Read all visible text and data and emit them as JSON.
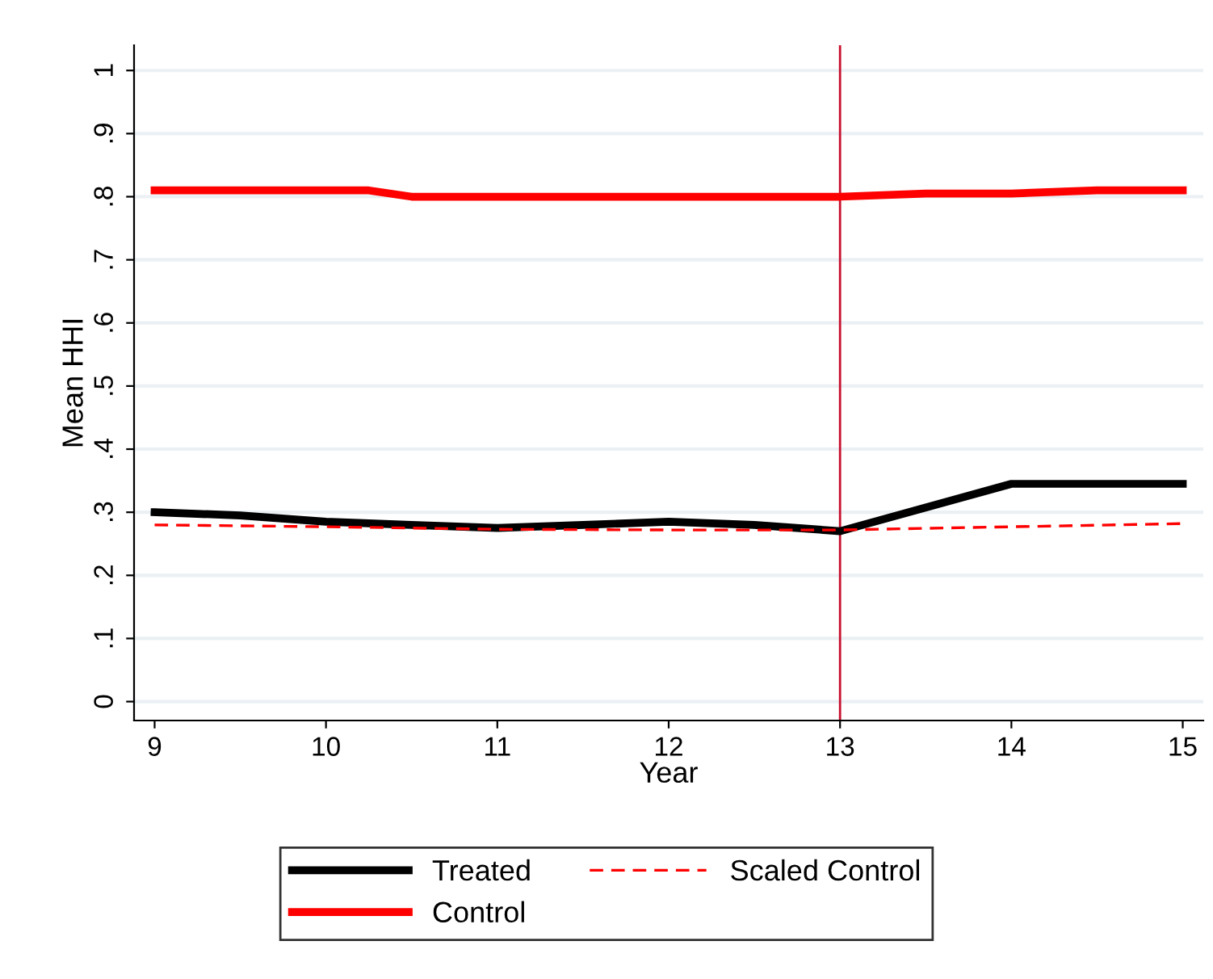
{
  "chart_data": {
    "type": "line",
    "xlabel": "Year",
    "ylabel": "Mean HHI",
    "series": [
      {
        "name": "Treated",
        "color": "#000000",
        "line_style": "solid",
        "x": [
          9,
          9.5,
          10,
          10.5,
          11,
          11.5,
          12,
          12.5,
          13,
          14,
          15
        ],
        "values": [
          0.3,
          0.295,
          0.285,
          0.28,
          0.275,
          0.28,
          0.285,
          0.28,
          0.27,
          0.345,
          0.345
        ]
      },
      {
        "name": "Control",
        "color": "#ff0000",
        "line_style": "solid",
        "x": [
          9,
          10.25,
          10.5,
          13,
          13.5,
          14,
          14.5,
          15
        ],
        "values": [
          0.81,
          0.81,
          0.8,
          0.8,
          0.805,
          0.805,
          0.81,
          0.81
        ]
      },
      {
        "name": "Scaled Control",
        "color": "#ff0000",
        "line_style": "dashed",
        "x": [
          9,
          10,
          11,
          12,
          13,
          14,
          15
        ],
        "values": [
          0.28,
          0.277,
          0.273,
          0.272,
          0.272,
          0.277,
          0.282
        ]
      }
    ],
    "xlim": [
      8.88,
      15.12
    ],
    "xticks": [
      9,
      10,
      11,
      12,
      13,
      14,
      15
    ],
    "ylim": [
      -0.03,
      1.04
    ],
    "yticks": [
      {
        "value": 0,
        "label": "0"
      },
      {
        "value": 0.1,
        "label": ".1"
      },
      {
        "value": 0.2,
        "label": ".2"
      },
      {
        "value": 0.3,
        "label": ".3"
      },
      {
        "value": 0.4,
        "label": ".4"
      },
      {
        "value": 0.5,
        "label": ".5"
      },
      {
        "value": 0.6,
        "label": ".6"
      },
      {
        "value": 0.7,
        "label": ".7"
      },
      {
        "value": 0.8,
        "label": ".8"
      },
      {
        "value": 0.9,
        "label": ".9"
      },
      {
        "value": 1,
        "label": "1"
      }
    ],
    "ref_lines": [
      {
        "axis": "x",
        "value": 13,
        "color": "#c8102e"
      }
    ],
    "grid": "y",
    "legend": "bottom"
  }
}
